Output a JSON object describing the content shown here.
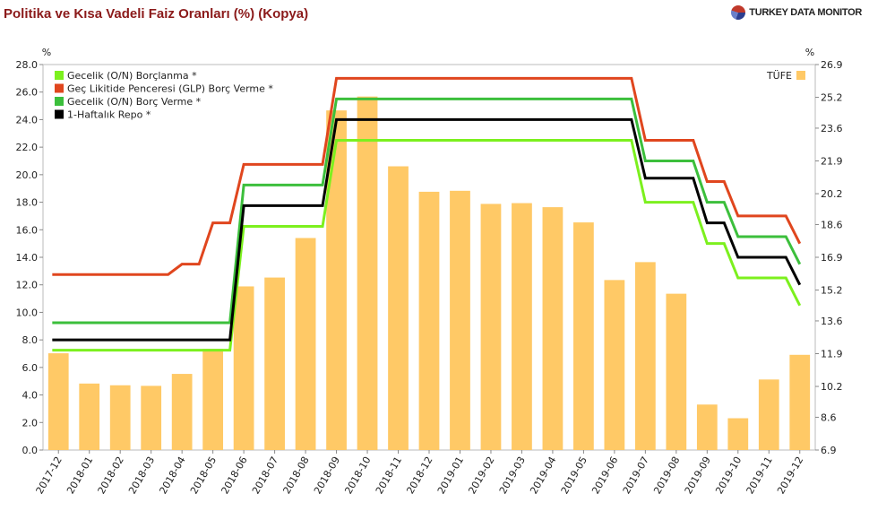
{
  "title": "Politika ve Kısa Vadeli Faiz Oranları (%) (Kopya)",
  "brand": "TURKEY DATA MONITOR",
  "colors": {
    "lend_on": "#7cf01e",
    "glp": "#e0461e",
    "borrow_on": "#3cbf3c",
    "repo": "#000000",
    "tufe": "#ffc966"
  },
  "chart_data": {
    "type": "bar+line",
    "categories": [
      "2017-12",
      "2018-01",
      "2018-02",
      "2018-03",
      "2018-04",
      "2018-05",
      "2018-06",
      "2018-07",
      "2018-08",
      "2018-09",
      "2018-10",
      "2018-11",
      "2018-12",
      "2019-01",
      "2019-02",
      "2019-03",
      "2019-04",
      "2019-05",
      "2019-06",
      "2019-07",
      "2019-08",
      "2019-09",
      "2019-10",
      "2019-11",
      "2019-12"
    ],
    "left_axis": {
      "unit": "%",
      "min": 0,
      "max": 28,
      "ticks": [
        "0.0",
        "2.0",
        "4.0",
        "6.0",
        "8.0",
        "10.0",
        "12.0",
        "14.0",
        "16.0",
        "18.0",
        "20.0",
        "22.0",
        "24.0",
        "26.0",
        "28.0"
      ]
    },
    "right_axis": {
      "unit": "%",
      "min": 6.9,
      "max": 26.9,
      "ticks": [
        "6.9",
        "8.6",
        "10.2",
        "11.9",
        "13.6",
        "15.2",
        "16.9",
        "18.6",
        "20.2",
        "21.9",
        "23.6",
        "25.2",
        "26.9"
      ]
    },
    "bars": {
      "name": "TÜFE",
      "axis": "right",
      "values": [
        11.92,
        10.35,
        10.26,
        10.23,
        10.85,
        12.15,
        15.39,
        15.85,
        17.9,
        24.52,
        25.24,
        21.62,
        20.3,
        20.35,
        19.67,
        19.71,
        19.5,
        18.71,
        15.72,
        16.65,
        15.01,
        9.26,
        8.55,
        10.56,
        11.84
      ]
    },
    "series": [
      {
        "name": "Gecelik (O/N) Borçlanma *",
        "color_key": "lend_on",
        "axis": "left",
        "values": [
          7.25,
          7.25,
          7.25,
          7.25,
          7.25,
          7.25,
          16.25,
          16.25,
          16.25,
          22.5,
          22.5,
          22.5,
          22.5,
          22.5,
          22.5,
          22.5,
          22.5,
          22.5,
          22.5,
          18.0,
          18.0,
          15.0,
          12.5,
          12.5,
          10.5
        ]
      },
      {
        "name": "Geç Likitide Penceresi (GLP) Borç Verme *",
        "color_key": "glp",
        "axis": "left",
        "values": [
          12.75,
          12.75,
          12.75,
          12.75,
          13.5,
          16.5,
          20.75,
          20.75,
          20.75,
          27.0,
          27.0,
          27.0,
          27.0,
          27.0,
          27.0,
          27.0,
          27.0,
          27.0,
          27.0,
          22.5,
          22.5,
          19.5,
          17.0,
          17.0,
          15.0
        ]
      },
      {
        "name": "Gecelik (O/N) Borç Verme *",
        "color_key": "borrow_on",
        "axis": "left",
        "values": [
          9.25,
          9.25,
          9.25,
          9.25,
          9.25,
          9.25,
          19.25,
          19.25,
          19.25,
          25.5,
          25.5,
          25.5,
          25.5,
          25.5,
          25.5,
          25.5,
          25.5,
          25.5,
          25.5,
          21.0,
          21.0,
          18.0,
          15.5,
          15.5,
          13.5
        ]
      },
      {
        "name": "1-Haftalık Repo *",
        "color_key": "repo",
        "axis": "left",
        "values": [
          8.0,
          8.0,
          8.0,
          8.0,
          8.0,
          8.0,
          17.75,
          17.75,
          17.75,
          24.0,
          24.0,
          24.0,
          24.0,
          24.0,
          24.0,
          24.0,
          24.0,
          24.0,
          24.0,
          19.75,
          19.75,
          16.5,
          14.0,
          14.0,
          12.0
        ]
      }
    ],
    "legend_left": "top-left",
    "legend_right": "top-right",
    "grid": false
  }
}
